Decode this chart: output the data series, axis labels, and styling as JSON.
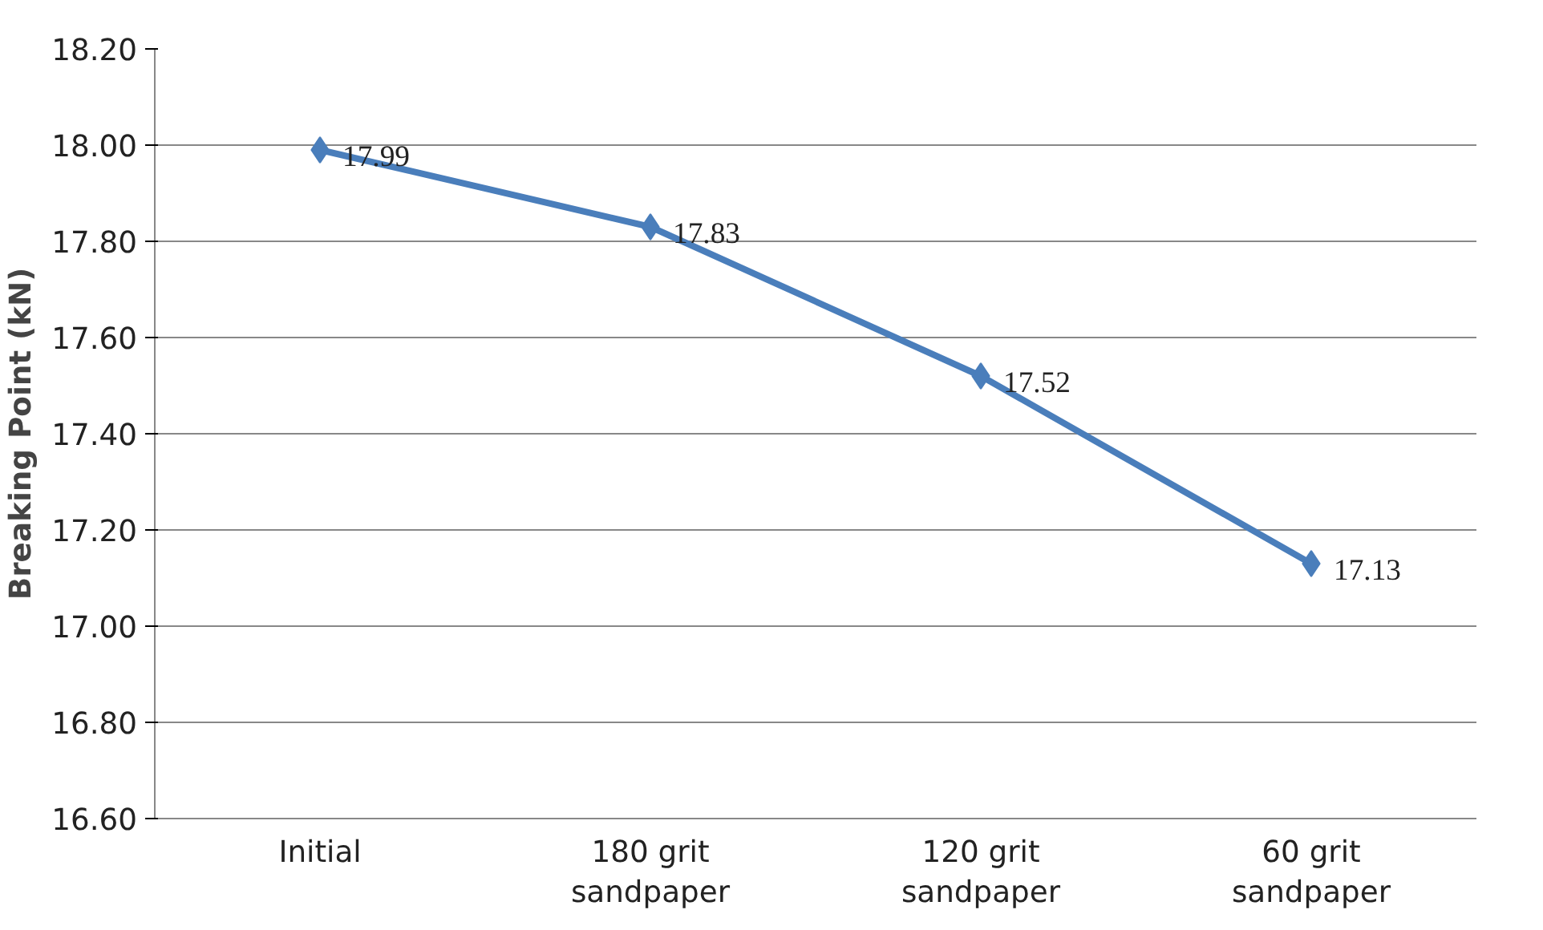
{
  "chart_data": {
    "type": "line",
    "ylabel": "Breaking Point (kN)",
    "categories": [
      "Initial",
      "180 grit sandpaper",
      "120 grit sandpaper",
      "60 grit sandpaper"
    ],
    "series": [
      {
        "color": "#4a7ebb",
        "values": [
          17.99,
          17.83,
          17.52,
          17.13
        ]
      }
    ],
    "ylim": [
      16.6,
      18.2
    ],
    "yticks": [
      {
        "value": 16.6,
        "label": "16.60"
      },
      {
        "value": 16.8,
        "label": "16.80"
      },
      {
        "value": 17.0,
        "label": "17.00"
      },
      {
        "value": 17.2,
        "label": "17.20"
      },
      {
        "value": 17.4,
        "label": "17.40"
      },
      {
        "value": 17.6,
        "label": "17.60"
      },
      {
        "value": 17.8,
        "label": "17.80"
      },
      {
        "value": 18.0,
        "label": "18.00"
      },
      {
        "value": 18.2,
        "label": "18.20"
      }
    ],
    "grid": "y",
    "marker": "diamond",
    "line_style": "solid",
    "data_labels": true
  }
}
